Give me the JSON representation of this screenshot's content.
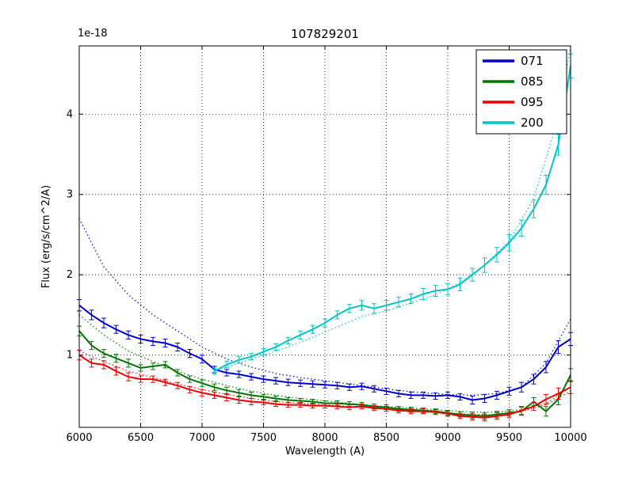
{
  "chart_data": {
    "type": "line",
    "title": "107829201",
    "xlabel": "Wavelength (A)",
    "ylabel": "Flux (erg/s/cm^2/A)",
    "offset_text": "1e-18",
    "xlim": [
      6000,
      10000
    ],
    "ylim": [
      0.1,
      4.85
    ],
    "xticks": [
      6000,
      6500,
      7000,
      7500,
      8000,
      8500,
      9000,
      9500,
      10000
    ],
    "yticks": [
      1,
      2,
      3,
      4
    ],
    "grid": true,
    "grid_style": "dotted",
    "legend_position": "upper right",
    "legend_entries": [
      "071",
      "085",
      "095",
      "200"
    ],
    "colors": {
      "071": "#0000cc",
      "085": "#007700",
      "095": "#ee0000",
      "200": "#00c5c8"
    },
    "series": [
      {
        "name": "071",
        "color": "#0000cc",
        "style": "solid",
        "errorbars": true,
        "x": [
          6000,
          6100,
          6200,
          6300,
          6400,
          6500,
          6600,
          6700,
          6800,
          6900,
          7000,
          7100,
          7200,
          7300,
          7400,
          7500,
          7600,
          7700,
          7800,
          7900,
          8000,
          8100,
          8200,
          8300,
          8400,
          8500,
          8600,
          8700,
          8800,
          8900,
          9000,
          9100,
          9200,
          9300,
          9400,
          9500,
          9600,
          9700,
          9800,
          9900,
          10000
        ],
        "y": [
          1.62,
          1.5,
          1.4,
          1.32,
          1.25,
          1.2,
          1.17,
          1.15,
          1.1,
          1.02,
          0.95,
          0.82,
          0.78,
          0.76,
          0.73,
          0.7,
          0.68,
          0.66,
          0.65,
          0.64,
          0.63,
          0.62,
          0.6,
          0.61,
          0.58,
          0.55,
          0.52,
          0.5,
          0.5,
          0.49,
          0.5,
          0.48,
          0.44,
          0.46,
          0.5,
          0.55,
          0.6,
          0.7,
          0.85,
          1.1,
          1.2
        ],
        "err": [
          0.07,
          0.06,
          0.06,
          0.05,
          0.05,
          0.05,
          0.05,
          0.05,
          0.05,
          0.05,
          0.05,
          0.04,
          0.04,
          0.04,
          0.04,
          0.04,
          0.04,
          0.04,
          0.04,
          0.04,
          0.04,
          0.04,
          0.04,
          0.04,
          0.04,
          0.04,
          0.04,
          0.04,
          0.04,
          0.04,
          0.04,
          0.04,
          0.05,
          0.05,
          0.05,
          0.05,
          0.06,
          0.06,
          0.07,
          0.08,
          0.08
        ]
      },
      {
        "name": "085",
        "color": "#007700",
        "style": "solid",
        "errorbars": true,
        "x": [
          6000,
          6100,
          6200,
          6300,
          6400,
          6500,
          6600,
          6700,
          6800,
          6900,
          7000,
          7100,
          7200,
          7300,
          7400,
          7500,
          7600,
          7700,
          7800,
          7900,
          8000,
          8100,
          8200,
          8300,
          8400,
          8500,
          8600,
          8700,
          8800,
          8900,
          9000,
          9100,
          9200,
          9300,
          9400,
          9500,
          9600,
          9700,
          9800,
          9900,
          10000
        ],
        "y": [
          1.3,
          1.12,
          1.02,
          0.96,
          0.9,
          0.84,
          0.86,
          0.88,
          0.78,
          0.7,
          0.65,
          0.6,
          0.56,
          0.53,
          0.5,
          0.48,
          0.46,
          0.44,
          0.43,
          0.42,
          0.4,
          0.4,
          0.39,
          0.38,
          0.36,
          0.35,
          0.33,
          0.32,
          0.31,
          0.3,
          0.28,
          0.26,
          0.25,
          0.24,
          0.26,
          0.28,
          0.3,
          0.42,
          0.3,
          0.45,
          0.75
        ],
        "err": [
          0.06,
          0.05,
          0.05,
          0.05,
          0.05,
          0.04,
          0.04,
          0.04,
          0.04,
          0.04,
          0.04,
          0.04,
          0.04,
          0.04,
          0.04,
          0.03,
          0.03,
          0.03,
          0.03,
          0.03,
          0.03,
          0.03,
          0.03,
          0.03,
          0.03,
          0.03,
          0.03,
          0.03,
          0.03,
          0.03,
          0.03,
          0.03,
          0.04,
          0.04,
          0.04,
          0.04,
          0.05,
          0.05,
          0.06,
          0.07,
          0.08
        ]
      },
      {
        "name": "095",
        "color": "#ee0000",
        "style": "solid",
        "errorbars": true,
        "x": [
          6000,
          6100,
          6200,
          6300,
          6400,
          6500,
          6600,
          6700,
          6800,
          6900,
          7000,
          7100,
          7200,
          7300,
          7400,
          7500,
          7600,
          7700,
          7800,
          7900,
          8000,
          8100,
          8200,
          8300,
          8400,
          8500,
          8600,
          8700,
          8800,
          8900,
          9000,
          9100,
          9200,
          9300,
          9400,
          9500,
          9600,
          9700,
          9800,
          9900,
          10000
        ],
        "y": [
          1.0,
          0.9,
          0.88,
          0.8,
          0.73,
          0.7,
          0.7,
          0.66,
          0.62,
          0.57,
          0.53,
          0.5,
          0.47,
          0.44,
          0.42,
          0.41,
          0.39,
          0.38,
          0.38,
          0.37,
          0.37,
          0.36,
          0.35,
          0.36,
          0.34,
          0.33,
          0.31,
          0.3,
          0.3,
          0.29,
          0.27,
          0.24,
          0.23,
          0.22,
          0.24,
          0.26,
          0.31,
          0.36,
          0.45,
          0.52,
          0.6
        ],
        "err": [
          0.06,
          0.05,
          0.05,
          0.05,
          0.05,
          0.04,
          0.04,
          0.04,
          0.04,
          0.04,
          0.04,
          0.04,
          0.04,
          0.04,
          0.04,
          0.03,
          0.03,
          0.03,
          0.03,
          0.03,
          0.03,
          0.03,
          0.03,
          0.03,
          0.03,
          0.03,
          0.03,
          0.03,
          0.03,
          0.03,
          0.03,
          0.03,
          0.04,
          0.04,
          0.04,
          0.04,
          0.05,
          0.05,
          0.06,
          0.07,
          0.08
        ]
      },
      {
        "name": "200",
        "color": "#00c5c8",
        "style": "solid",
        "errorbars": true,
        "x": [
          7100,
          7200,
          7300,
          7400,
          7500,
          7600,
          7700,
          7800,
          7900,
          8000,
          8100,
          8200,
          8300,
          8400,
          8500,
          8600,
          8700,
          8800,
          8900,
          9000,
          9100,
          9200,
          9300,
          9400,
          9500,
          9600,
          9700,
          9800,
          9900,
          10000
        ],
        "y": [
          0.8,
          0.88,
          0.94,
          0.98,
          1.04,
          1.1,
          1.18,
          1.25,
          1.32,
          1.4,
          1.5,
          1.58,
          1.62,
          1.58,
          1.62,
          1.66,
          1.7,
          1.76,
          1.8,
          1.82,
          1.88,
          2.0,
          2.12,
          2.25,
          2.4,
          2.58,
          2.82,
          3.12,
          3.62,
          4.6
        ],
        "err": [
          0.04,
          0.04,
          0.04,
          0.04,
          0.04,
          0.04,
          0.04,
          0.05,
          0.05,
          0.05,
          0.05,
          0.05,
          0.06,
          0.06,
          0.06,
          0.06,
          0.06,
          0.07,
          0.07,
          0.07,
          0.08,
          0.08,
          0.09,
          0.09,
          0.1,
          0.1,
          0.11,
          0.12,
          0.13,
          0.15
        ]
      },
      {
        "name": "071-model",
        "color": "#0000cc",
        "style": "dotted",
        "errorbars": false,
        "x": [
          6000,
          6200,
          6400,
          6600,
          6800,
          7000,
          7200,
          7400,
          7600,
          7800,
          8000,
          8200,
          8400,
          8600,
          8800,
          9000,
          9200,
          9400,
          9600,
          9800,
          10000
        ],
        "y": [
          2.7,
          2.1,
          1.75,
          1.5,
          1.3,
          1.1,
          0.95,
          0.85,
          0.77,
          0.72,
          0.68,
          0.64,
          0.6,
          0.56,
          0.53,
          0.51,
          0.5,
          0.52,
          0.6,
          0.9,
          1.45
        ]
      },
      {
        "name": "085-model",
        "color": "#007700",
        "style": "dotted",
        "errorbars": false,
        "x": [
          6000,
          6200,
          6400,
          6600,
          6800,
          7000,
          7200,
          7400,
          7600,
          7800,
          8000,
          8200,
          8400,
          8600,
          8800,
          9000,
          9200,
          9400,
          9600,
          9800,
          10000
        ],
        "y": [
          1.5,
          1.25,
          1.05,
          0.92,
          0.8,
          0.7,
          0.62,
          0.55,
          0.5,
          0.46,
          0.43,
          0.4,
          0.37,
          0.35,
          0.33,
          0.31,
          0.29,
          0.29,
          0.32,
          0.4,
          0.6
        ]
      },
      {
        "name": "095-model",
        "color": "#ee0000",
        "style": "dotted",
        "errorbars": false,
        "x": [
          6000,
          6200,
          6400,
          6600,
          6800,
          7000,
          7200,
          7400,
          7600,
          7800,
          8000,
          8200,
          8400,
          8600,
          8800,
          9000,
          9200,
          9400,
          9600,
          9800,
          10000
        ],
        "y": [
          1.05,
          0.92,
          0.8,
          0.72,
          0.64,
          0.57,
          0.51,
          0.46,
          0.42,
          0.4,
          0.38,
          0.36,
          0.34,
          0.32,
          0.3,
          0.28,
          0.26,
          0.26,
          0.3,
          0.38,
          0.55
        ]
      },
      {
        "name": "200-model",
        "color": "#00c5c8",
        "style": "dotted",
        "errorbars": false,
        "x": [
          7100,
          7300,
          7500,
          7700,
          7900,
          8100,
          8300,
          8500,
          8700,
          8900,
          9100,
          9300,
          9500,
          9700,
          9900,
          10000
        ],
        "y": [
          0.8,
          0.9,
          1.0,
          1.1,
          1.22,
          1.35,
          1.48,
          1.55,
          1.65,
          1.75,
          1.9,
          2.12,
          2.42,
          2.95,
          3.95,
          4.85
        ]
      }
    ]
  }
}
